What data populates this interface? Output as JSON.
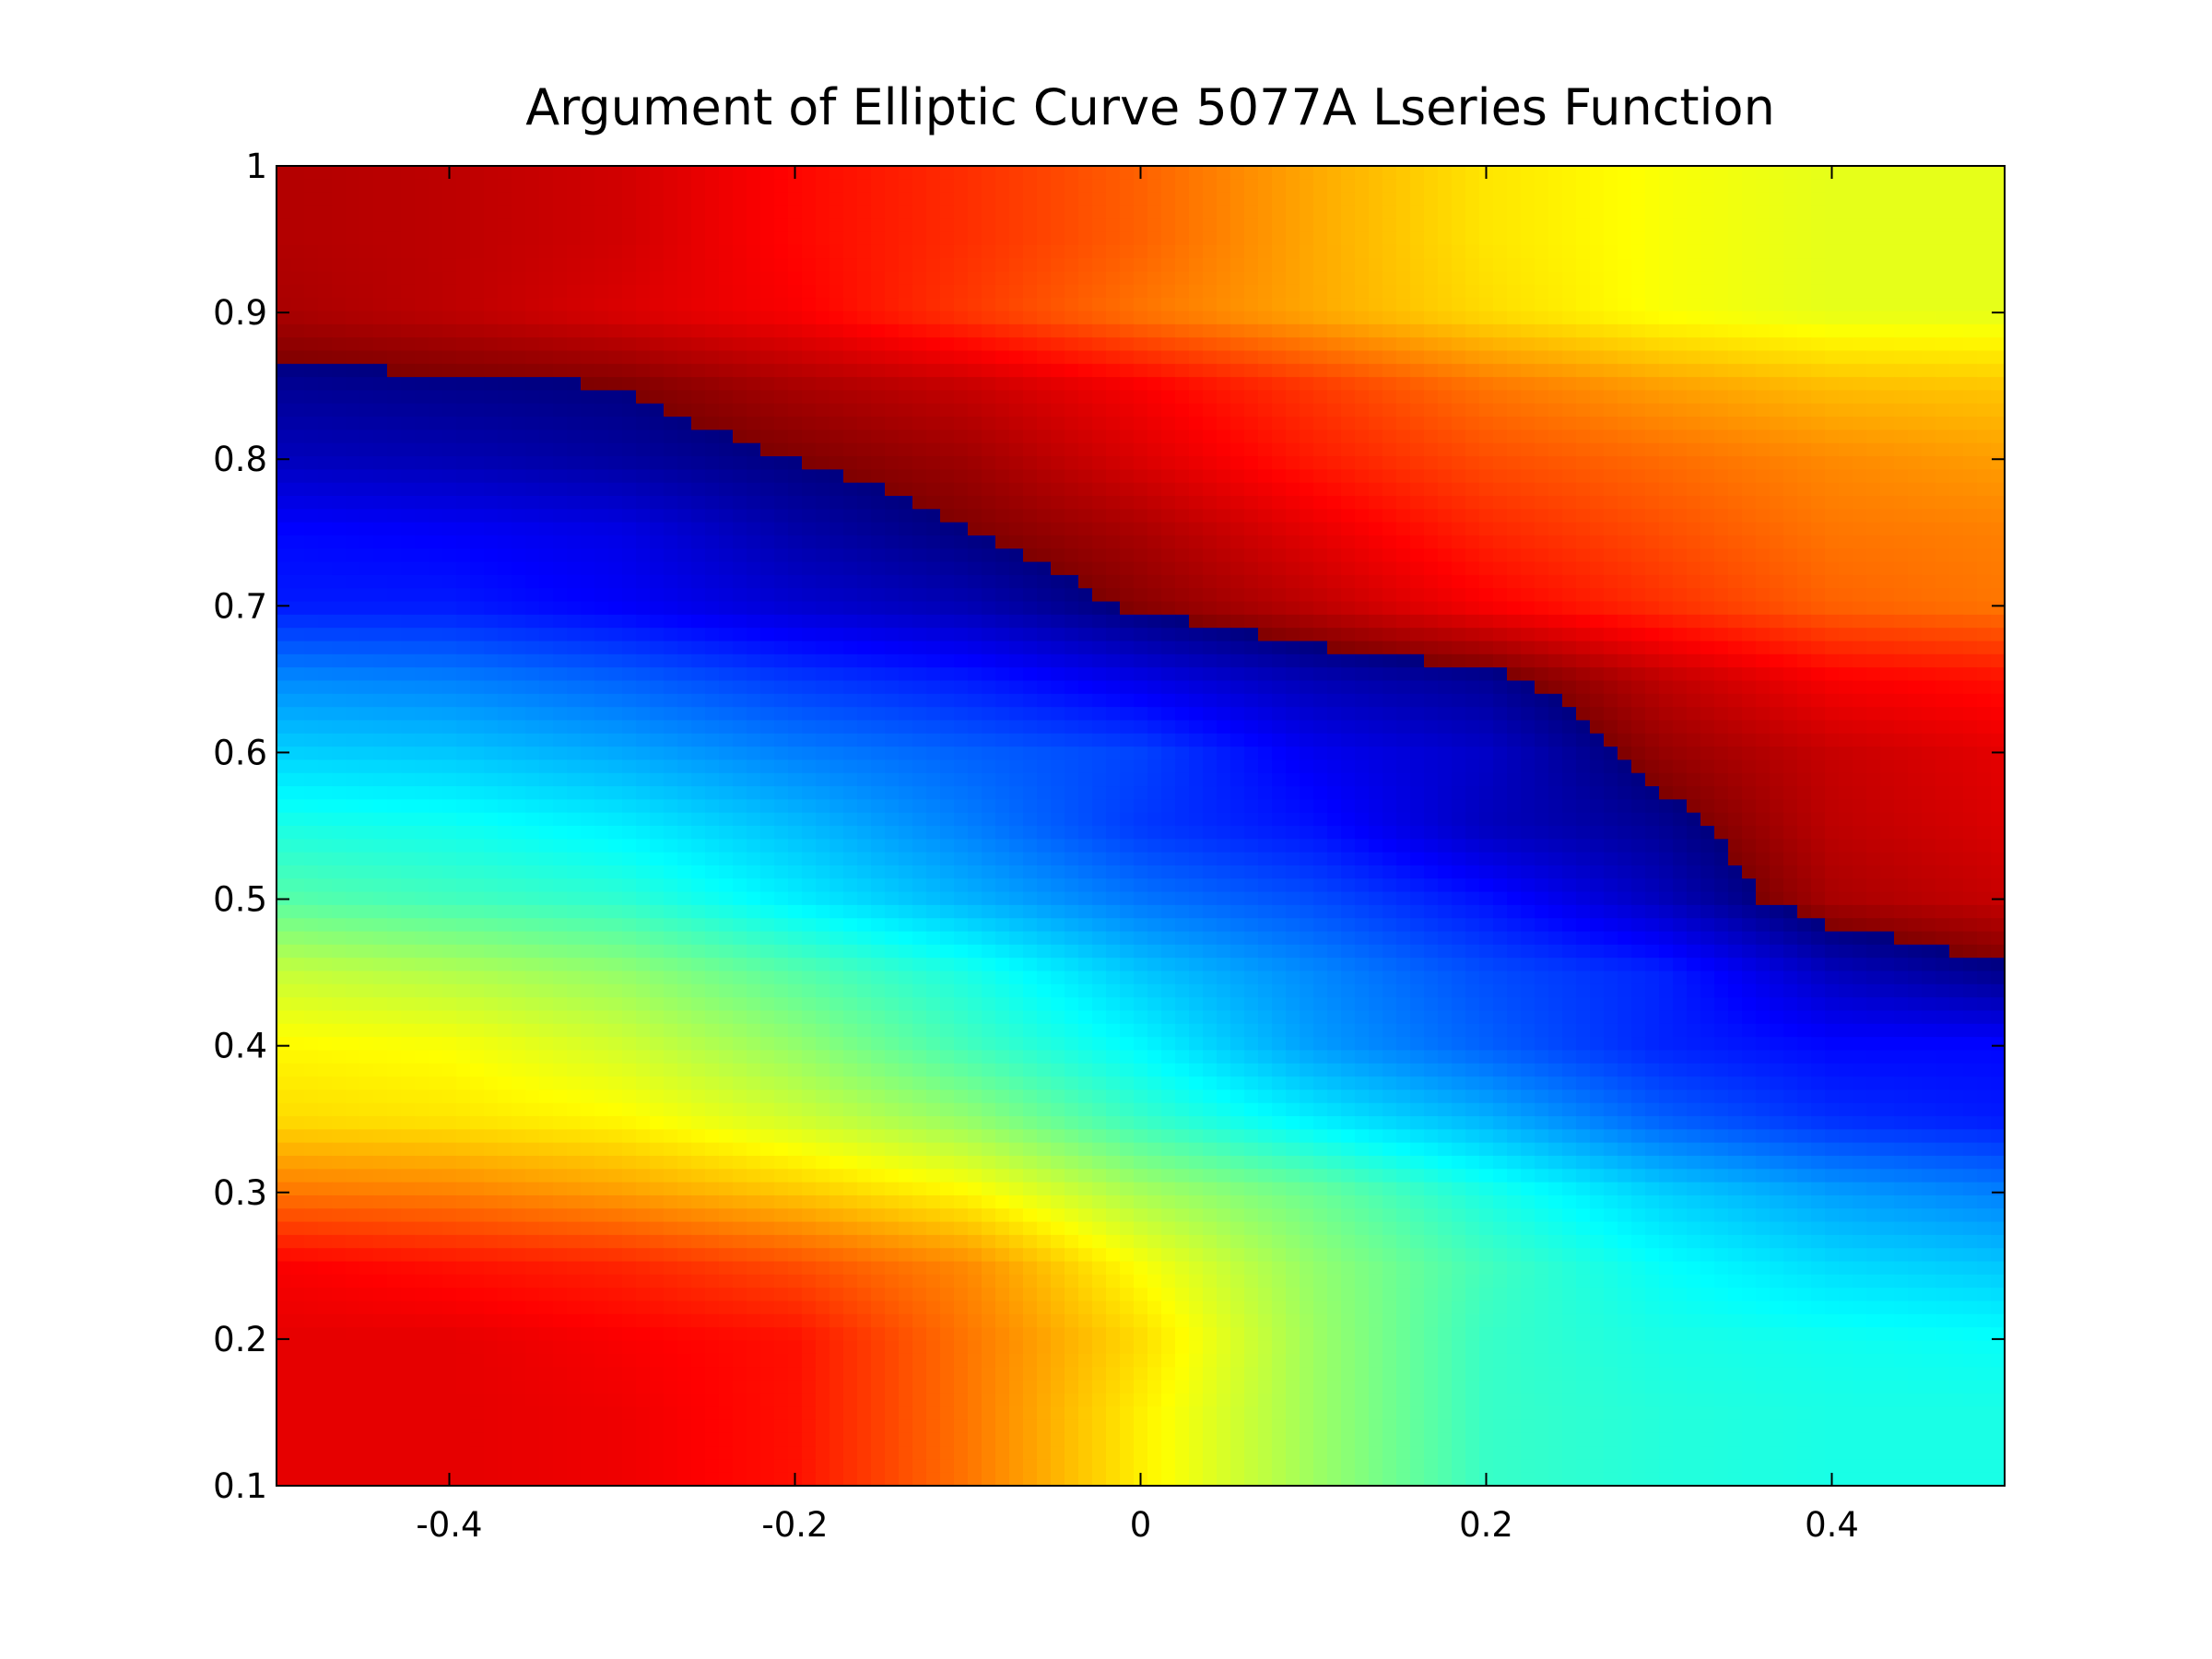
{
  "chart_data": {
    "type": "heatmap",
    "title": "Argument of Elliptic Curve 5077A Lseries Function",
    "xlabel": "",
    "ylabel": "",
    "xlim": [
      -0.5,
      0.5
    ],
    "ylim": [
      0.1,
      1.0
    ],
    "x_ticks": [
      -0.4,
      -0.2,
      0,
      0.2,
      0.4
    ],
    "x_tick_labels": [
      "-0.4",
      "-0.2",
      "0",
      "0.2",
      "0.4"
    ],
    "y_ticks": [
      0.1,
      0.2,
      0.3,
      0.4,
      0.5,
      0.6,
      0.7,
      0.8,
      0.9,
      1.0
    ],
    "y_tick_labels": [
      "0.1",
      "0.2",
      "0.3",
      "0.4",
      "0.5",
      "0.6",
      "0.7",
      "0.8",
      "0.9",
      "1"
    ],
    "colormap": "jet",
    "grid": false,
    "legend": "none",
    "x": [
      -0.5,
      -0.4,
      -0.3,
      -0.2,
      -0.1,
      0.0,
      0.1,
      0.2,
      0.3,
      0.4,
      0.5
    ],
    "y": [
      0.1,
      0.15,
      0.2,
      0.25,
      0.3,
      0.35,
      0.4,
      0.45,
      0.5,
      0.55,
      0.6,
      0.65,
      0.7,
      0.75,
      0.8,
      0.85,
      0.9,
      0.95,
      1.0
    ],
    "z_normalized": [
      [
        0.9,
        0.9,
        0.89,
        0.86,
        0.76,
        0.64,
        0.53,
        0.43,
        0.41,
        0.4,
        0.4
      ],
      [
        0.9,
        0.9,
        0.89,
        0.86,
        0.76,
        0.64,
        0.53,
        0.43,
        0.41,
        0.4,
        0.4
      ],
      [
        0.9,
        0.9,
        0.88,
        0.86,
        0.76,
        0.66,
        0.53,
        0.43,
        0.4,
        0.39,
        0.38
      ],
      [
        0.88,
        0.86,
        0.84,
        0.8,
        0.74,
        0.62,
        0.52,
        0.44,
        0.38,
        0.34,
        0.32
      ],
      [
        0.76,
        0.75,
        0.72,
        0.68,
        0.63,
        0.54,
        0.48,
        0.4,
        0.33,
        0.28,
        0.25
      ],
      [
        0.66,
        0.65,
        0.63,
        0.58,
        0.52,
        0.43,
        0.36,
        0.3,
        0.22,
        0.17,
        0.15
      ],
      [
        0.63,
        0.62,
        0.58,
        0.52,
        0.44,
        0.37,
        0.28,
        0.22,
        0.16,
        0.13,
        0.13
      ],
      [
        0.57,
        0.55,
        0.52,
        0.46,
        0.4,
        0.32,
        0.26,
        0.2,
        0.16,
        0.06,
        0.01
      ],
      [
        0.46,
        0.44,
        0.42,
        0.36,
        0.3,
        0.24,
        0.2,
        0.14,
        0.06,
        0.96,
        0.93
      ],
      [
        0.4,
        0.39,
        0.36,
        0.31,
        0.25,
        0.18,
        0.14,
        0.06,
        0.02,
        0.94,
        0.91
      ],
      [
        0.33,
        0.32,
        0.29,
        0.25,
        0.22,
        0.19,
        0.11,
        0.07,
        0.98,
        0.93,
        0.9
      ],
      [
        0.26,
        0.25,
        0.22,
        0.18,
        0.15,
        0.1,
        0.05,
        0.02,
        0.94,
        0.88,
        0.86
      ],
      [
        0.15,
        0.15,
        0.12,
        0.08,
        0.05,
        0.99,
        0.94,
        0.88,
        0.83,
        0.78,
        0.76
      ],
      [
        0.13,
        0.12,
        0.1,
        0.04,
        0.0,
        0.96,
        0.9,
        0.84,
        0.8,
        0.76,
        0.75
      ],
      [
        0.06,
        0.05,
        0.03,
        0.0,
        0.97,
        0.91,
        0.85,
        0.8,
        0.77,
        0.74,
        0.72
      ],
      [
        0.02,
        0.01,
        0.0,
        0.96,
        0.93,
        0.88,
        0.82,
        0.76,
        0.72,
        0.69,
        0.68
      ],
      [
        0.96,
        0.94,
        0.91,
        0.88,
        0.82,
        0.76,
        0.71,
        0.66,
        0.62,
        0.6,
        0.6
      ],
      [
        0.95,
        0.94,
        0.92,
        0.87,
        0.83,
        0.78,
        0.71,
        0.65,
        0.62,
        0.6,
        0.6
      ],
      [
        0.95,
        0.94,
        0.92,
        0.87,
        0.83,
        0.78,
        0.71,
        0.65,
        0.62,
        0.6,
        0.6
      ]
    ]
  }
}
